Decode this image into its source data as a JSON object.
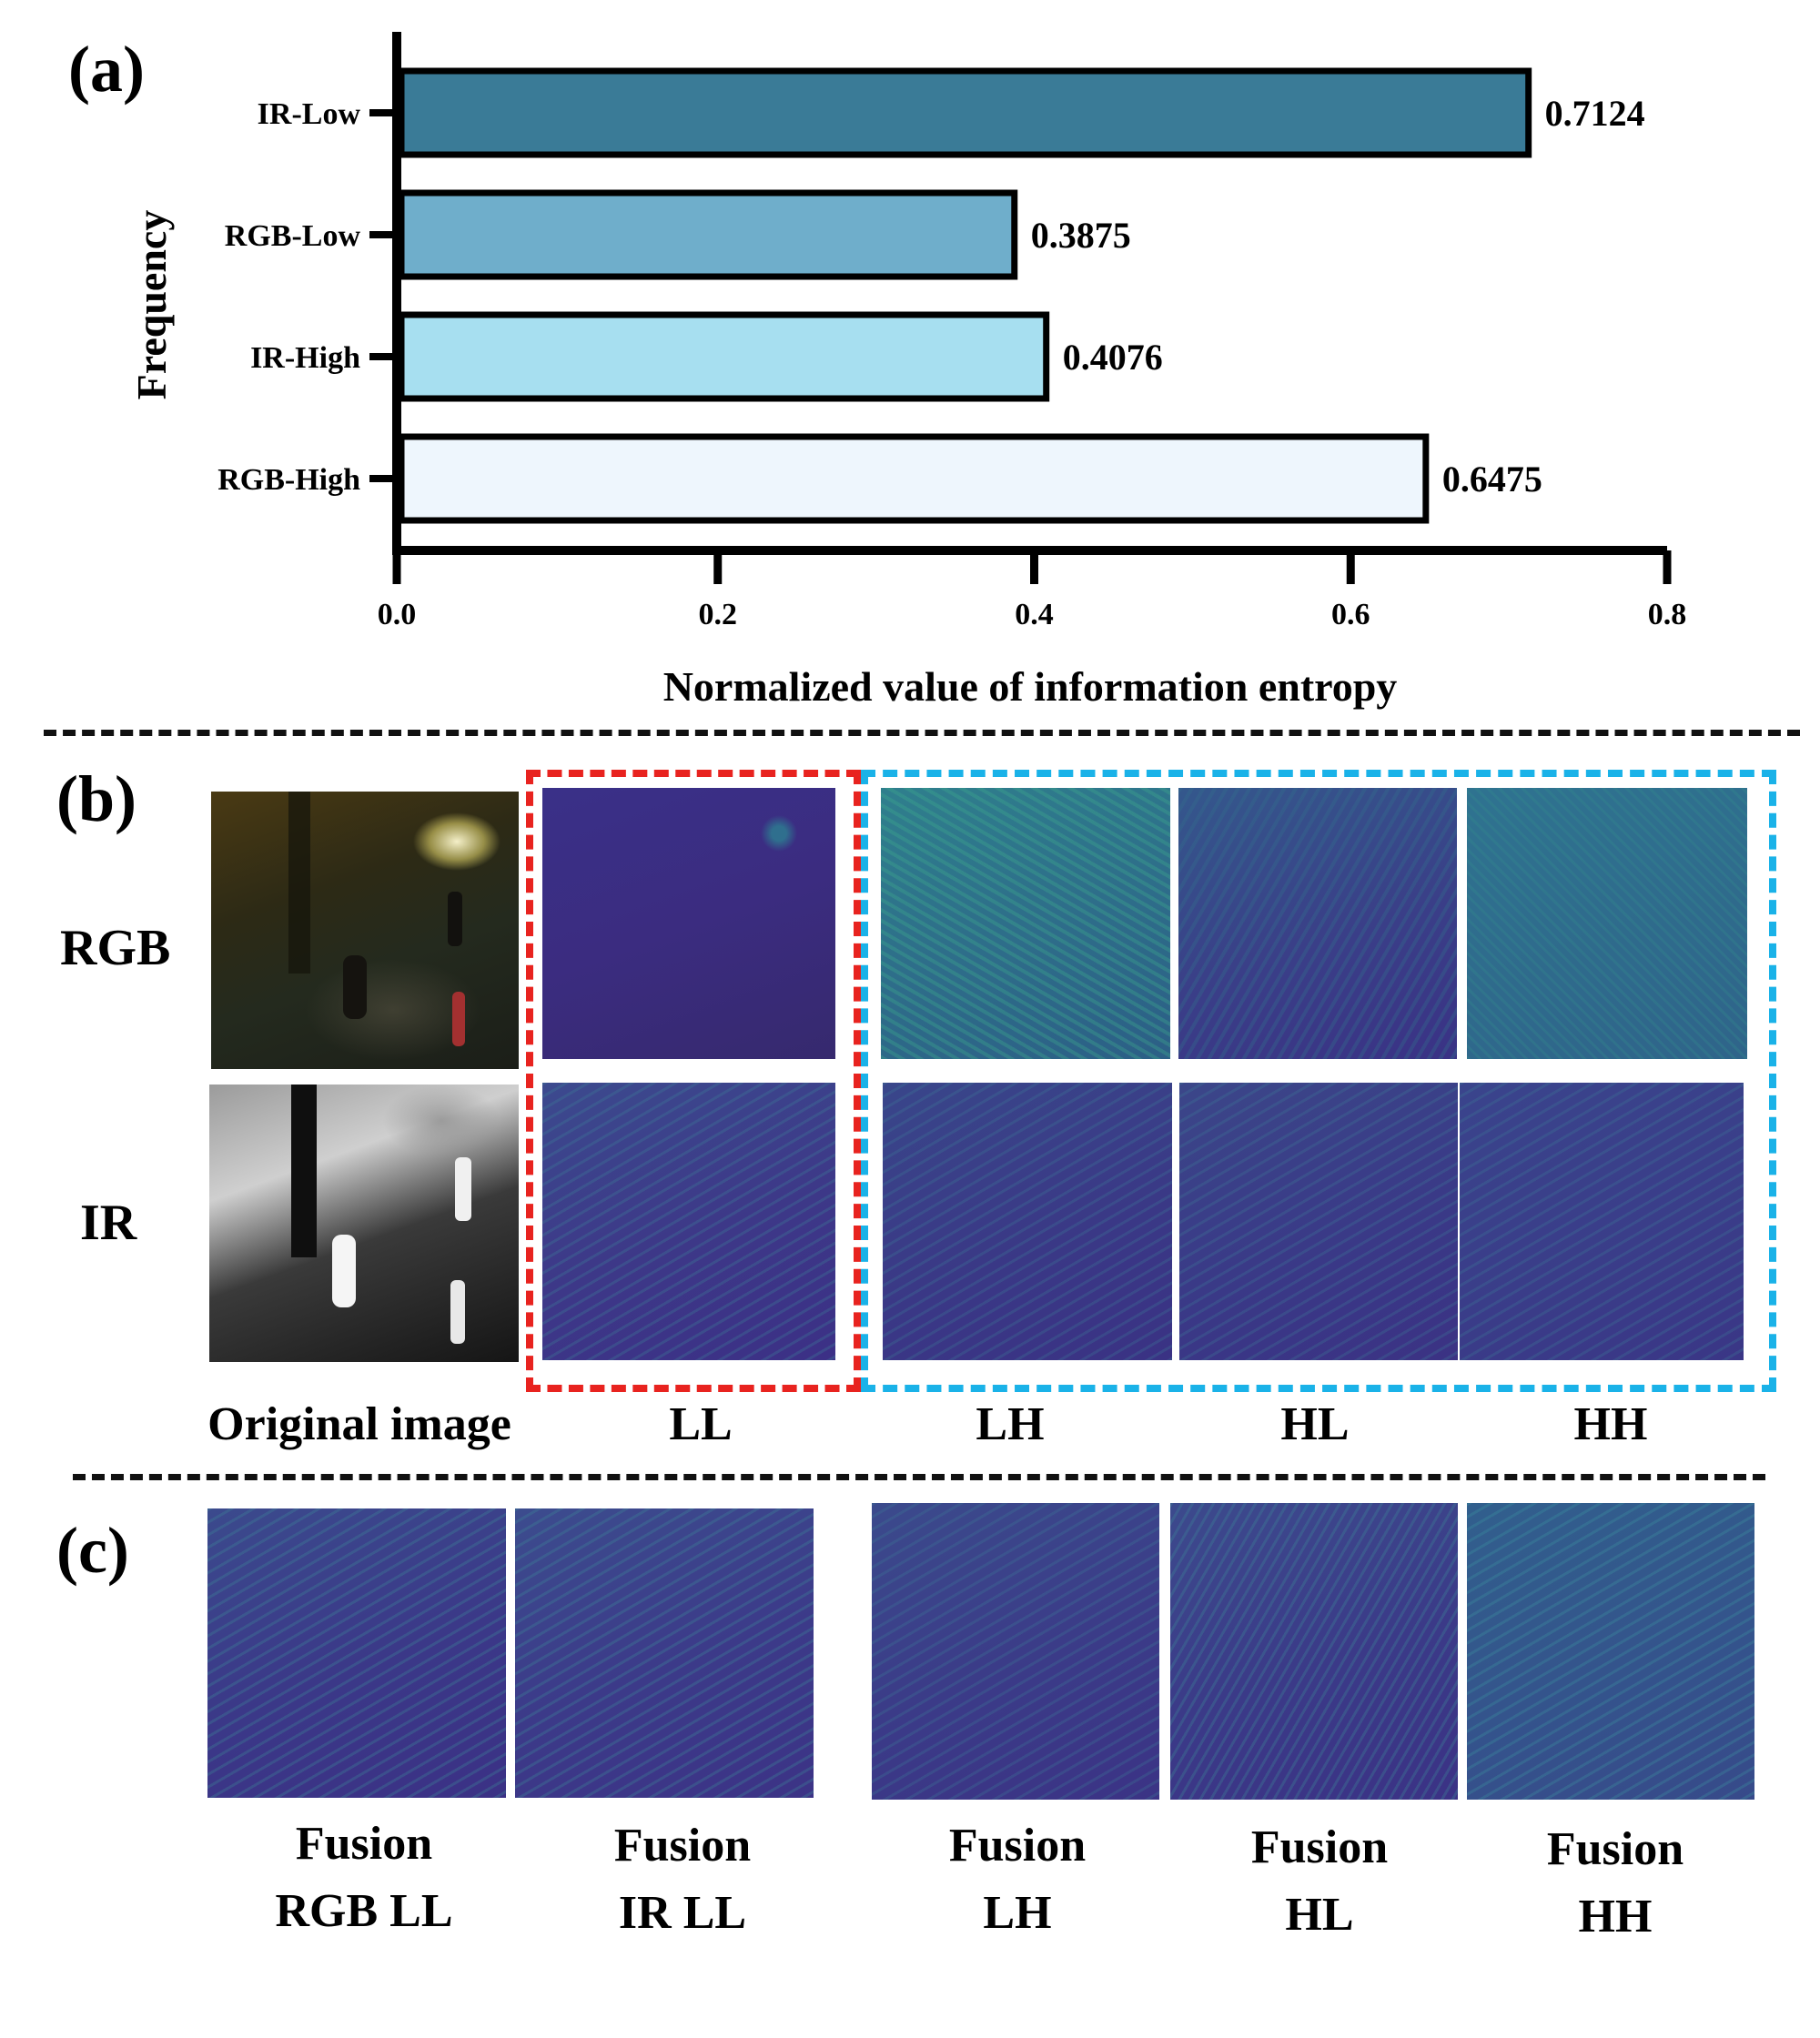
{
  "panels": {
    "a": "(a)",
    "b": "(b)",
    "c": "(c)"
  },
  "chart_data": {
    "type": "bar",
    "orientation": "horizontal",
    "categories": [
      "IR-Low",
      "RGB-Low",
      "IR-High",
      "RGB-High"
    ],
    "values": [
      0.7124,
      0.3875,
      0.4076,
      0.6475
    ],
    "value_labels": [
      "0.7124",
      "0.3875",
      "0.4076",
      "0.6475"
    ],
    "colors": [
      "#3a7b97",
      "#6faecb",
      "#a7dff0",
      "#eef6fd"
    ],
    "xlabel": "Normalized value of information entropy",
    "ylabel": "Frequency",
    "xlim": [
      0,
      0.8
    ],
    "xticks": [
      "0.0",
      "0.2",
      "0.4",
      "0.6",
      "0.8"
    ],
    "grid": false
  },
  "panel_b": {
    "row_labels": [
      "RGB",
      "IR"
    ],
    "captions": [
      "Original image",
      "LL",
      "LH",
      "HL",
      "HH"
    ],
    "highlight_colors": {
      "low": "#e8231f",
      "high": "#1ab2e8"
    }
  },
  "panel_c": {
    "captions": [
      {
        "line1": "Fusion",
        "line2": "RGB LL"
      },
      {
        "line1": "Fusion",
        "line2": "IR LL"
      },
      {
        "line1": "Fusion",
        "line2": "LH"
      },
      {
        "line1": "Fusion",
        "line2": "HL"
      },
      {
        "line1": "Fusion",
        "line2": "HH"
      }
    ]
  }
}
